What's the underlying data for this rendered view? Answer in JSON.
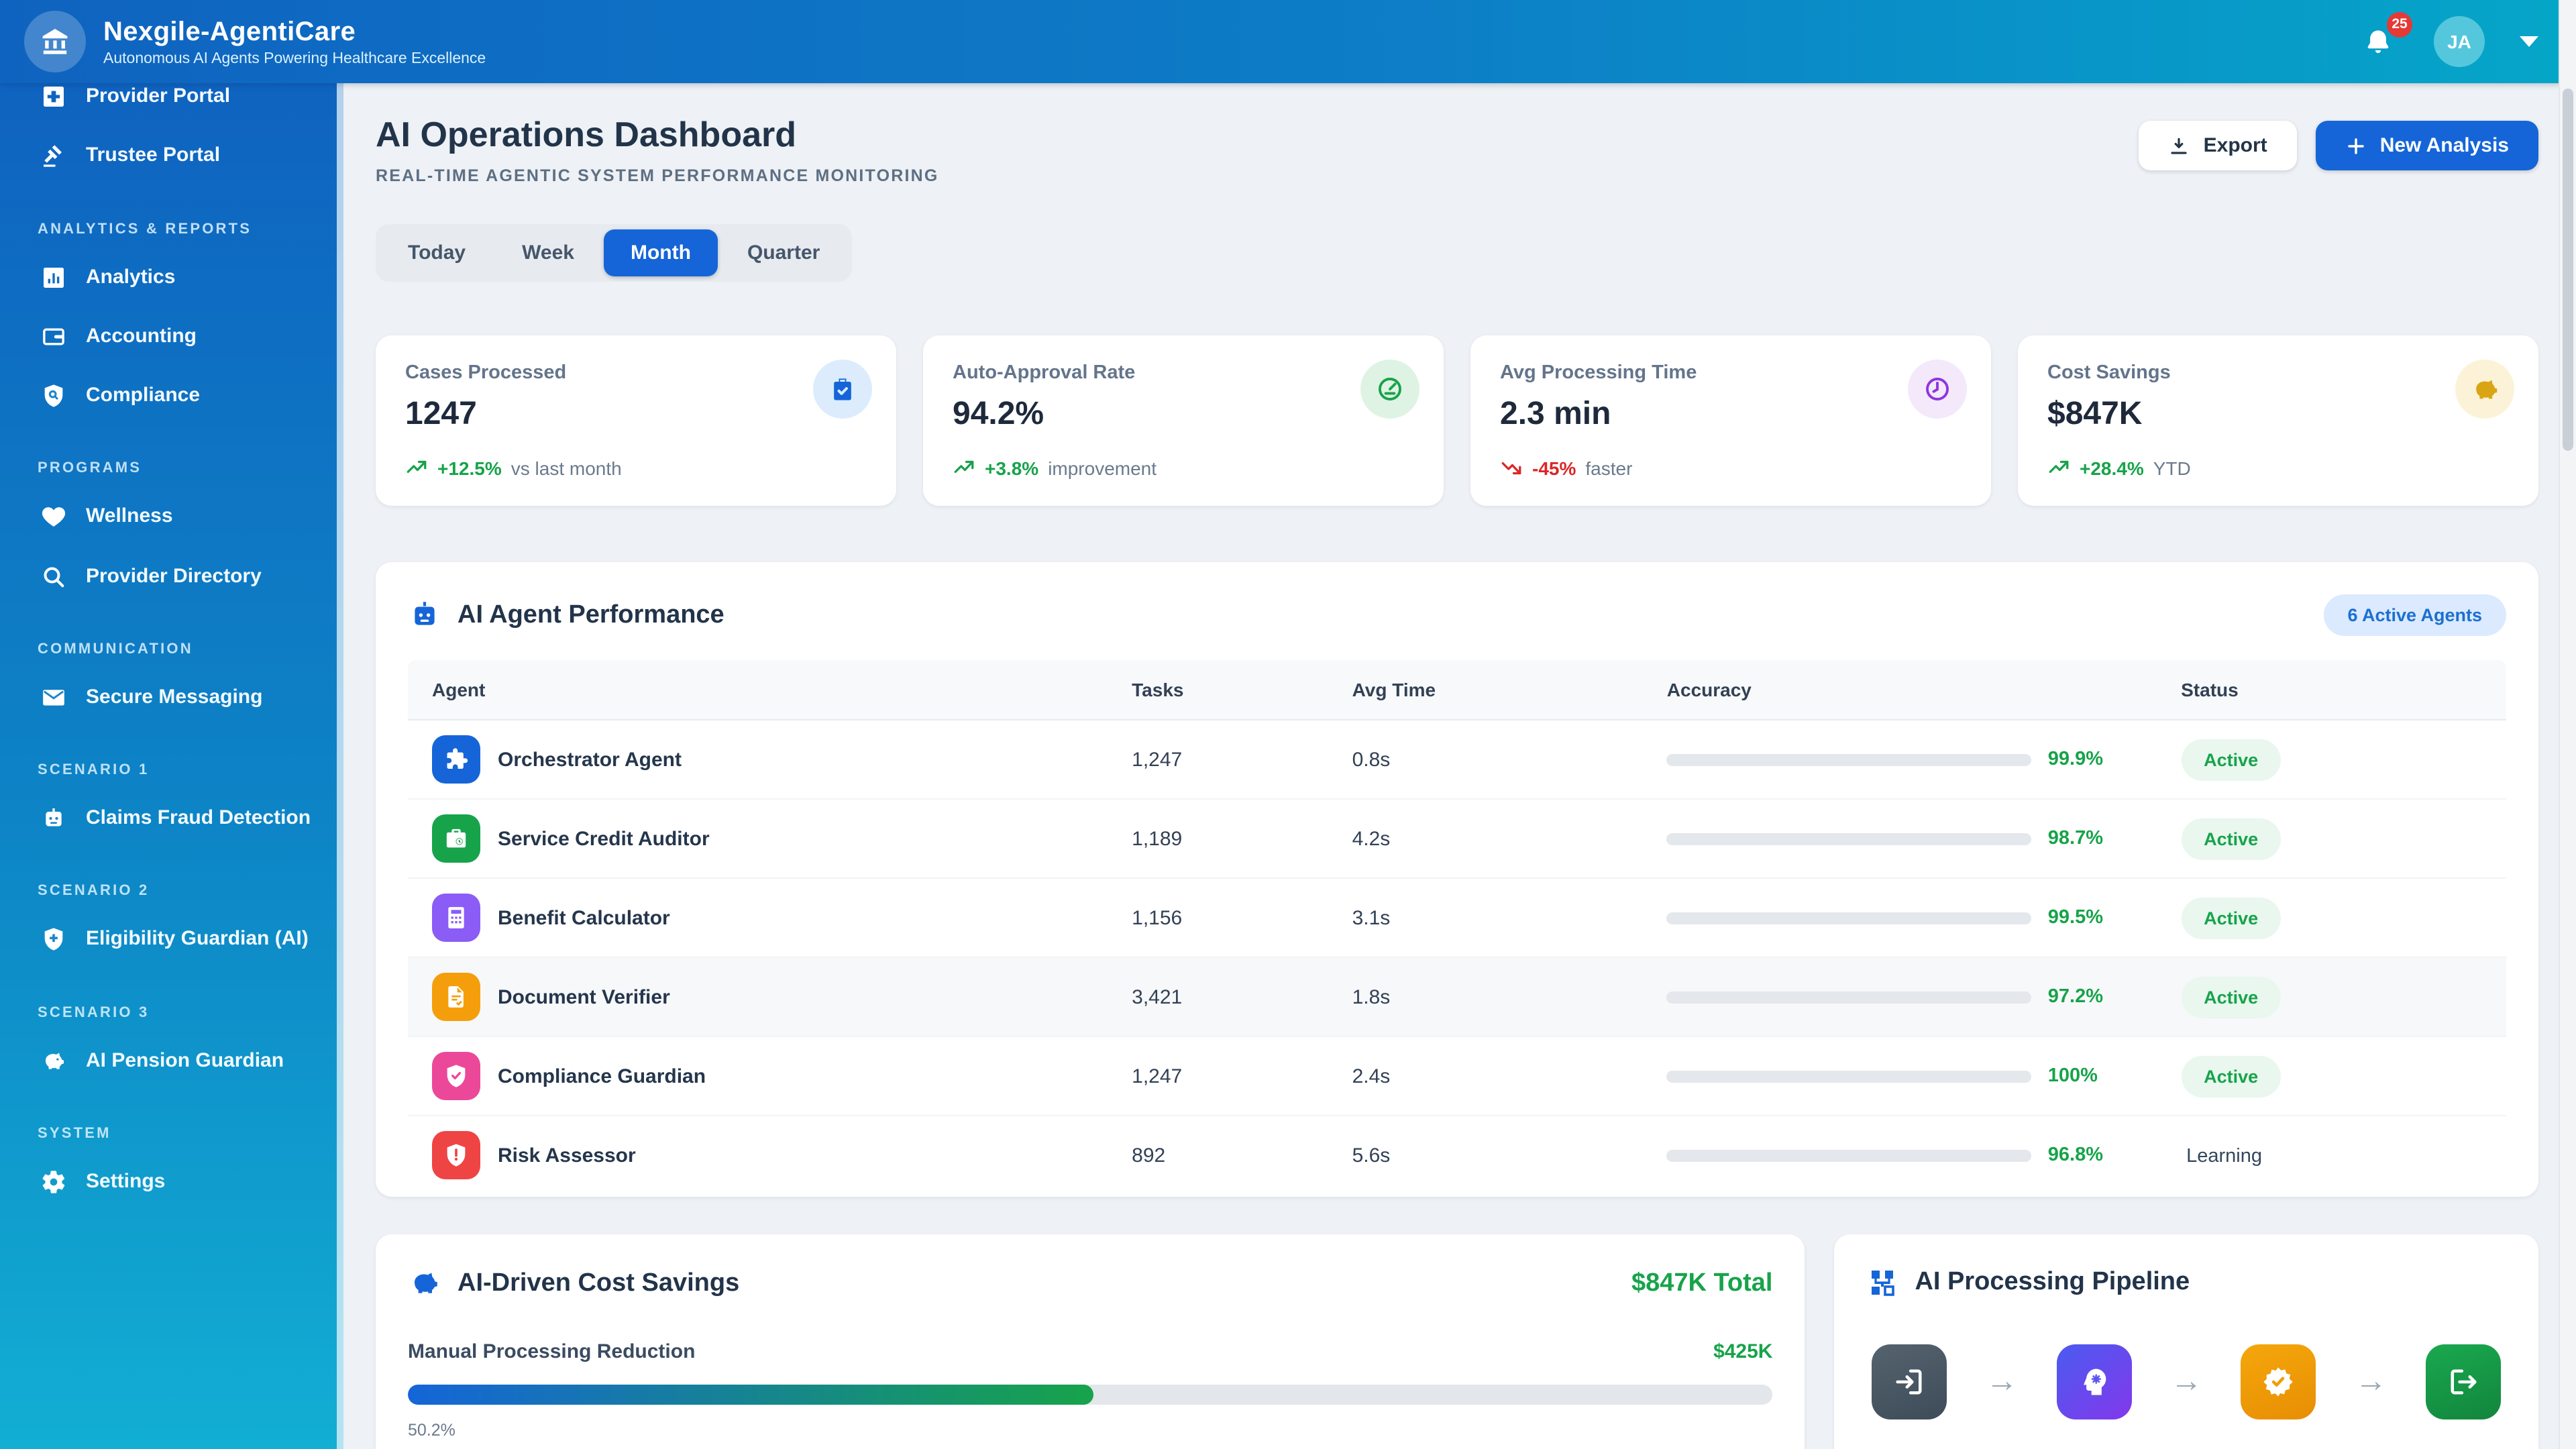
{
  "header": {
    "app_title": "Nexgile-AgentiCare",
    "app_subtitle": "Autonomous AI Agents Powering Healthcare Excellence",
    "notification_count": "25",
    "avatar_initials": "JA"
  },
  "sidebar": {
    "top_items": [
      {
        "label": "Provider Portal"
      },
      {
        "label": "Trustee Portal"
      }
    ],
    "sections": [
      {
        "title": "ANALYTICS & REPORTS",
        "items": [
          {
            "label": "Analytics"
          },
          {
            "label": "Accounting"
          },
          {
            "label": "Compliance"
          }
        ]
      },
      {
        "title": "PROGRAMS",
        "items": [
          {
            "label": "Wellness"
          },
          {
            "label": "Provider Directory"
          }
        ]
      },
      {
        "title": "COMMUNICATION",
        "items": [
          {
            "label": "Secure Messaging"
          }
        ]
      },
      {
        "title": "SCENARIO 1",
        "items": [
          {
            "label": "Claims Fraud Detection"
          }
        ]
      },
      {
        "title": "SCENARIO 2",
        "items": [
          {
            "label": "Eligibility Guardian (AI)"
          }
        ]
      },
      {
        "title": "SCENARIO 3",
        "items": [
          {
            "label": "AI Pension Guardian"
          }
        ]
      },
      {
        "title": "SYSTEM",
        "items": [
          {
            "label": "Settings"
          }
        ]
      }
    ]
  },
  "page": {
    "title": "AI Operations Dashboard",
    "subtitle": "REAL-TIME AGENTIC SYSTEM PERFORMANCE MONITORING",
    "export_label": "Export",
    "new_analysis_label": "New Analysis"
  },
  "time_tabs": {
    "options": [
      "Today",
      "Week",
      "Month",
      "Quarter"
    ],
    "active": "Month"
  },
  "kpi_cards": [
    {
      "label": "Cases Processed",
      "value": "1247",
      "trend": "+12.5%",
      "trend_note": "vs last month",
      "trend_direction": "up",
      "icon": "clipboard-check-icon",
      "accent": "#1565d8"
    },
    {
      "label": "Auto-Approval Rate",
      "value": "94.2%",
      "trend": "+3.8%",
      "trend_note": "improvement",
      "trend_direction": "up",
      "icon": "gauge-icon",
      "accent": "#17a34a"
    },
    {
      "label": "Avg Processing Time",
      "value": "2.3 min",
      "trend": "-45%",
      "trend_note": "faster",
      "trend_direction": "down",
      "icon": "clock-icon",
      "accent": "#8f35e0"
    },
    {
      "label": "Cost Savings",
      "value": "$847K",
      "trend": "+28.4%",
      "trend_note": "YTD",
      "trend_direction": "up",
      "icon": "piggy-bank-icon",
      "accent": "#d9a514"
    }
  ],
  "agent_table": {
    "title": "AI Agent Performance",
    "badge": "6 Active Agents",
    "columns": [
      "Agent",
      "Tasks",
      "Avg Time",
      "Accuracy",
      "Status"
    ],
    "rows": [
      {
        "name": "Orchestrator Agent",
        "tasks": "1,247",
        "avg_time": "0.8s",
        "accuracy_label": "99.9%",
        "accuracy_pct": 99.9,
        "status": "Active",
        "color": "#1565d8"
      },
      {
        "name": "Service Credit Auditor",
        "tasks": "1,189",
        "avg_time": "4.2s",
        "accuracy_label": "98.7%",
        "accuracy_pct": 98.7,
        "status": "Active",
        "color": "#17a34a"
      },
      {
        "name": "Benefit Calculator",
        "tasks": "1,156",
        "avg_time": "3.1s",
        "accuracy_label": "99.5%",
        "accuracy_pct": 99.5,
        "status": "Active",
        "color": "#8b5cf6"
      },
      {
        "name": "Document Verifier",
        "tasks": "3,421",
        "avg_time": "1.8s",
        "accuracy_label": "97.2%",
        "accuracy_pct": 97.2,
        "status": "Active",
        "color": "#f59e0b"
      },
      {
        "name": "Compliance Guardian",
        "tasks": "1,247",
        "avg_time": "2.4s",
        "accuracy_label": "100%",
        "accuracy_pct": 100,
        "status": "Active",
        "color": "#ec4899"
      },
      {
        "name": "Risk Assessor",
        "tasks": "892",
        "avg_time": "5.6s",
        "accuracy_label": "96.8%",
        "accuracy_pct": 96.8,
        "status": "Learning",
        "color": "#ef4444"
      }
    ]
  },
  "cost_savings": {
    "title": "AI-Driven Cost Savings",
    "total": "$847K Total",
    "item_label": "Manual Processing Reduction",
    "item_value": "$425K",
    "pct_label": "50.2%",
    "pct": 50.2
  },
  "pipeline": {
    "title": "AI Processing Pipeline",
    "arrow": "→",
    "steps": [
      {
        "name": "intake"
      },
      {
        "name": "ai-processing"
      },
      {
        "name": "verification"
      },
      {
        "name": "output"
      }
    ]
  }
}
